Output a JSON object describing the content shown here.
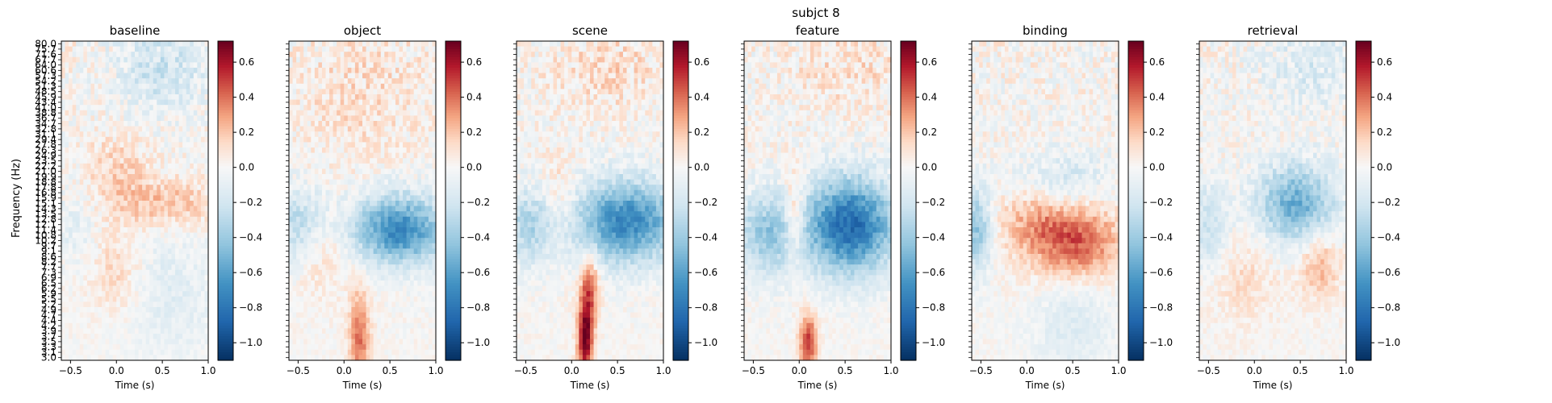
{
  "figure": {
    "suptitle": "subjct 8"
  },
  "chart_data": {
    "type": "heatmap",
    "shared": {
      "xlabel": "Time (s)",
      "ylabel": "Frequency (Hz)",
      "xlim": [
        -0.6,
        1.0
      ],
      "x_ticks": [
        -0.5,
        0.0,
        0.5,
        1.0
      ],
      "x_tick_labels": [
        "−0.5",
        "0.0",
        "0.5",
        "1.0"
      ],
      "freq_labels": [
        "80.0",
        "75.7",
        "71.6",
        "67.7",
        "64.0",
        "60.6",
        "57.3",
        "54.2",
        "51.3",
        "48.5",
        "45.9",
        "43.4",
        "41.0",
        "38.8",
        "36.7",
        "34.7",
        "32.8",
        "31.1",
        "29.4",
        "27.8",
        "26.3",
        "24.9",
        "23.5",
        "22.2",
        "21.0",
        "19.9",
        "18.8",
        "17.8",
        "16.8",
        "15.9",
        "15.1",
        "14.3",
        "13.5",
        "12.8",
        "12.1",
        "11.4",
        "10.8",
        "10.2",
        "9.7",
        "9.1",
        "8.6",
        "8.2",
        "7.7",
        "7.3",
        "6.9",
        "6.5",
        "6.2",
        "5.9",
        "5.5",
        "5.2",
        "4.9",
        "4.7",
        "4.4",
        "4.2",
        "3.9",
        "3.7",
        "3.5",
        "3.3",
        "3.1",
        "3.0"
      ],
      "freq_range_hz": [
        3.0,
        80.0
      ],
      "colormap": "RdBu_r",
      "vmin": -1.1,
      "vmax": 0.72,
      "colorbar_ticks": [
        0.6,
        0.4,
        0.2,
        0.0,
        -0.2,
        -0.4,
        -0.6,
        -0.8,
        -1.0
      ],
      "colorbar_tick_labels": [
        "0.6",
        "0.4",
        "0.2",
        "0.0",
        "−0.2",
        "−0.4",
        "−0.6",
        "−0.8",
        "−1.0"
      ],
      "colors": {
        "max": "#67001f",
        "zero": "#f7f7f7",
        "min": "#053061"
      }
    },
    "panels": [
      {
        "title": "baseline",
        "features": [
          {
            "t": 0.55,
            "f": 15.0,
            "st": 0.4,
            "sf": 0.18,
            "a": 0.22
          },
          {
            "t": 0.0,
            "f": 21.0,
            "st": 0.25,
            "sf": 0.25,
            "a": 0.15
          },
          {
            "t": 0.0,
            "f": 7.5,
            "st": 0.2,
            "sf": 0.3,
            "a": 0.15
          },
          {
            "t": 0.5,
            "f": 60.0,
            "st": 0.35,
            "sf": 0.3,
            "a": -0.22
          },
          {
            "t": 0.6,
            "f": 6.0,
            "st": 0.35,
            "sf": 0.5,
            "a": -0.12
          },
          {
            "t": -0.45,
            "f": 12.0,
            "st": 0.2,
            "sf": 0.3,
            "a": -0.1
          }
        ]
      },
      {
        "title": "object",
        "features": [
          {
            "t": 0.6,
            "f": 11.5,
            "st": 0.35,
            "sf": 0.25,
            "a": -0.72
          },
          {
            "t": -0.5,
            "f": 12.0,
            "st": 0.22,
            "sf": 0.28,
            "a": -0.3
          },
          {
            "t": 0.17,
            "f": 3.8,
            "st": 0.08,
            "sf": 0.35,
            "a": 0.4
          },
          {
            "t": -0.25,
            "f": 9.0,
            "st": 0.2,
            "sf": 0.3,
            "a": 0.15
          },
          {
            "t": 0.2,
            "f": 45.0,
            "st": 0.5,
            "sf": 0.5,
            "a": 0.1
          }
        ]
      },
      {
        "title": "scene",
        "features": [
          {
            "t": 0.6,
            "f": 12.5,
            "st": 0.4,
            "sf": 0.3,
            "a": -0.72
          },
          {
            "t": -0.4,
            "f": 12.0,
            "st": 0.25,
            "sf": 0.28,
            "a": -0.35
          },
          {
            "t": 0.15,
            "f": 3.8,
            "st": 0.06,
            "sf": 0.28,
            "a": 0.72
          },
          {
            "t": 0.2,
            "f": 6.5,
            "st": 0.07,
            "sf": 0.25,
            "a": 0.4
          },
          {
            "t": -0.15,
            "f": 14.0,
            "st": 0.15,
            "sf": 0.35,
            "a": 0.22
          },
          {
            "t": 0.4,
            "f": 60.0,
            "st": 0.4,
            "sf": 0.3,
            "a": 0.12
          }
        ]
      },
      {
        "title": "feature",
        "features": [
          {
            "t": 0.55,
            "f": 12.0,
            "st": 0.35,
            "sf": 0.35,
            "a": -0.85
          },
          {
            "t": -0.35,
            "f": 11.0,
            "st": 0.25,
            "sf": 0.3,
            "a": -0.4
          },
          {
            "t": -0.05,
            "f": 13.0,
            "st": 0.08,
            "sf": 0.3,
            "a": 0.35
          },
          {
            "t": 0.1,
            "f": 3.6,
            "st": 0.07,
            "sf": 0.22,
            "a": 0.5
          },
          {
            "t": 0.5,
            "f": 60.0,
            "st": 0.4,
            "sf": 0.3,
            "a": 0.1
          }
        ]
      },
      {
        "title": "binding",
        "features": [
          {
            "t": 0.55,
            "f": 10.0,
            "st": 0.35,
            "sf": 0.28,
            "a": 0.42
          },
          {
            "t": 0.1,
            "f": 12.5,
            "st": 0.3,
            "sf": 0.25,
            "a": 0.22
          },
          {
            "t": -0.55,
            "f": 11.5,
            "st": 0.12,
            "sf": 0.3,
            "a": -0.45
          },
          {
            "t": 0.4,
            "f": 19.0,
            "st": 0.35,
            "sf": 0.22,
            "a": -0.2
          },
          {
            "t": 0.5,
            "f": 4.5,
            "st": 0.3,
            "sf": 0.4,
            "a": -0.15
          }
        ]
      },
      {
        "title": "retrieval",
        "features": [
          {
            "t": 0.45,
            "f": 15.0,
            "st": 0.3,
            "sf": 0.28,
            "a": -0.55
          },
          {
            "t": -0.5,
            "f": 12.0,
            "st": 0.15,
            "sf": 0.3,
            "a": -0.25
          },
          {
            "t": 0.7,
            "f": 8.0,
            "st": 0.15,
            "sf": 0.25,
            "a": 0.25
          },
          {
            "t": -0.1,
            "f": 7.0,
            "st": 0.25,
            "sf": 0.35,
            "a": 0.12
          },
          {
            "t": 0.6,
            "f": 60.0,
            "st": 0.35,
            "sf": 0.3,
            "a": -0.15
          }
        ]
      }
    ]
  }
}
